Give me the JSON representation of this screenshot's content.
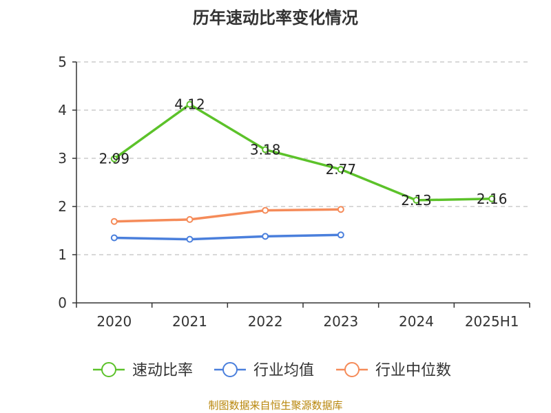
{
  "chart_data": {
    "type": "line",
    "title": "历年速动比率变化情况",
    "categories": [
      "2020",
      "2021",
      "2022",
      "2023",
      "2024",
      "2025H1"
    ],
    "ylim": [
      0,
      5
    ],
    "yticks": [
      0,
      1,
      2,
      3,
      4,
      5
    ],
    "grid": true,
    "legend_position": "bottom",
    "series": [
      {
        "name": "速动比率",
        "color": "#5cc22a",
        "values": [
          2.99,
          4.12,
          3.18,
          2.77,
          2.13,
          2.16
        ],
        "labels": [
          "2.99",
          "4.12",
          "3.18",
          "2.77",
          "2.13",
          "2.16"
        ]
      },
      {
        "name": "行业均值",
        "color": "#4a7fdc",
        "values": [
          1.35,
          1.32,
          1.38,
          1.41,
          null,
          null
        ]
      },
      {
        "name": "行业中位数",
        "color": "#f58b59",
        "values": [
          1.69,
          1.73,
          1.92,
          1.94,
          null,
          null
        ]
      }
    ]
  },
  "source": "制图数据来自恒生聚源数据库"
}
